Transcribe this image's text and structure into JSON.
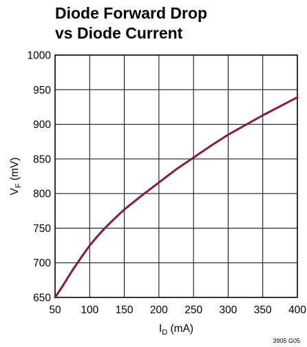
{
  "chart_data": {
    "type": "line",
    "title_line1": "Diode Forward Drop",
    "title_line2": "vs Diode Current",
    "xlabel": {
      "main": "I",
      "sub": "D",
      "unit": " (mA)"
    },
    "ylabel": {
      "main": "V",
      "sub": "F",
      "unit": " (mV)"
    },
    "xlim": [
      50,
      400
    ],
    "ylim": [
      650,
      1000
    ],
    "xticks": [
      "50",
      "100",
      "150",
      "200",
      "250",
      "300",
      "350",
      "400"
    ],
    "yticks": [
      "650",
      "700",
      "750",
      "800",
      "850",
      "900",
      "950",
      "1000"
    ],
    "grid": true,
    "series": [
      {
        "color": "#8b1a3a",
        "x": [
          50,
          60,
          75,
          90,
          100,
          110,
          120,
          135,
          150,
          175,
          200,
          225,
          250,
          275,
          300,
          325,
          350,
          375,
          400
        ],
        "y": [
          650,
          665,
          689,
          711,
          725,
          737,
          748,
          763,
          777,
          797,
          816,
          835,
          852,
          869,
          885,
          899,
          913,
          926,
          939
        ]
      }
    ],
    "figure_id": "3905 G05"
  }
}
